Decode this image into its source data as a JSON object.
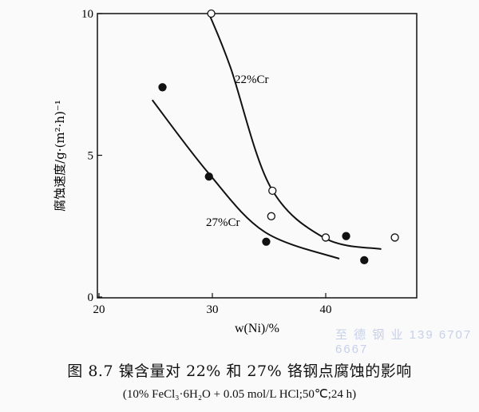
{
  "chart_data": {
    "type": "scatter",
    "xlabel": "w(Ni)/%",
    "ylabel": "腐蚀速度/g·(m²·h)⁻¹",
    "xlim": [
      20,
      47
    ],
    "ylim": [
      0,
      10
    ],
    "xticks": [
      20,
      30,
      40
    ],
    "yticks": [
      0,
      5,
      10
    ],
    "grid": false,
    "series": [
      {
        "name": "22%Cr",
        "marker": "open-circle",
        "points": [
          [
            29.9,
            10.0
          ],
          [
            35.3,
            3.75
          ],
          [
            35.2,
            2.85
          ],
          [
            40.0,
            2.1
          ],
          [
            46.1,
            2.1
          ]
        ],
        "curve": [
          [
            29.7,
            10.0
          ],
          [
            31.6,
            8.1
          ],
          [
            35.1,
            3.9
          ],
          [
            39.9,
            2.08
          ],
          [
            44.9,
            1.69
          ]
        ]
      },
      {
        "name": "27%Cr",
        "marker": "filled-circle",
        "points": [
          [
            25.6,
            7.4
          ],
          [
            29.7,
            4.25
          ],
          [
            34.75,
            1.95
          ],
          [
            41.8,
            2.15
          ],
          [
            43.4,
            1.3
          ]
        ],
        "curve": [
          [
            24.7,
            6.95
          ],
          [
            29.6,
            4.4
          ],
          [
            34.6,
            2.3
          ],
          [
            41.2,
            1.35
          ]
        ]
      }
    ]
  },
  "caption": {
    "title": "图 8.7   镍含量对 22% 和 27% 铬钢点腐蚀的影响",
    "conditions": "(10% FeCl₃·6H₂O + 0.05 mol/L HCl;50℃;24 h)"
  },
  "watermark": "至 德 钢 业  139 6707 6667"
}
